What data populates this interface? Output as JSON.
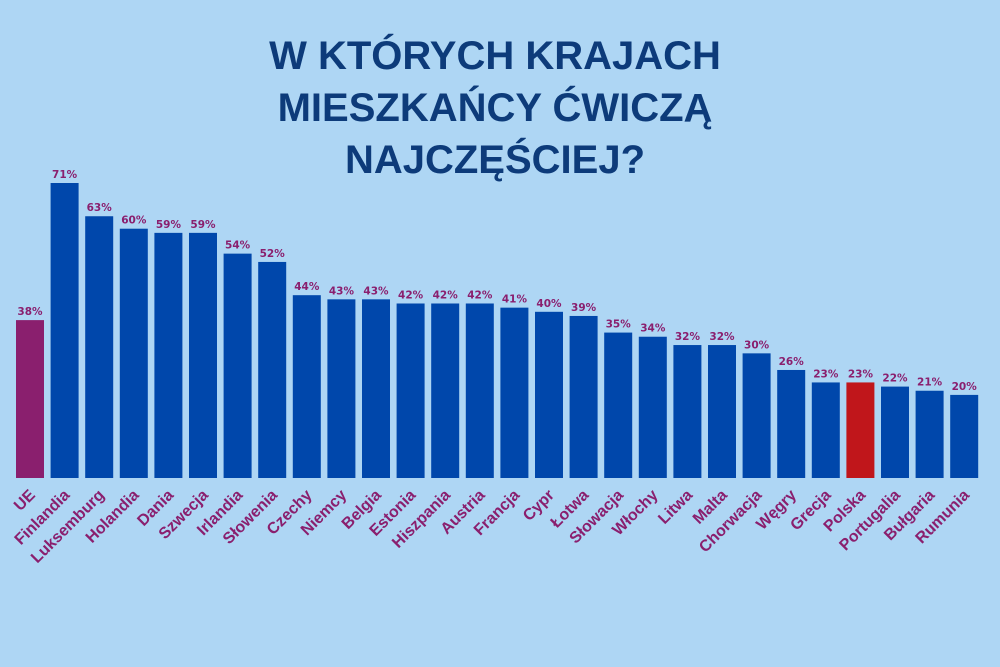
{
  "title_lines": [
    "W KTÓRYCH KRAJACH",
    "MIESZKAŃCY ĆWICZĄ",
    "NAJCZĘŚCIEJ?"
  ],
  "colors": {
    "background": "#aed6f4",
    "title": "#0d3b7a",
    "bar_default": "#0047ab",
    "bar_eu": "#8a1f6e",
    "bar_highlight": "#c0161b",
    "labels": "#8a1f6e"
  },
  "chart_data": {
    "type": "bar",
    "title": "W KTÓRYCH KRAJACH MIESZKAŃCY ĆWICZĄ NAJCZĘŚCIEJ?",
    "value_suffix": "%",
    "categories": [
      "UE",
      "Finlandia",
      "Luksemburg",
      "Holandia",
      "Dania",
      "Szwecja",
      "Irlandia",
      "Słowenia",
      "Czechy",
      "Niemcy",
      "Belgia",
      "Estonia",
      "Hiszpania",
      "Austria",
      "Francja",
      "Cypr",
      "Łotwa",
      "Słowacja",
      "Włochy",
      "Litwa",
      "Malta",
      "Chorwacja",
      "Węgry",
      "Grecja",
      "Polska",
      "Portugalia",
      "Bułgaria",
      "Rumunia"
    ],
    "values": [
      38,
      71,
      63,
      60,
      59,
      59,
      54,
      52,
      44,
      43,
      43,
      42,
      42,
      42,
      41,
      40,
      39,
      35,
      34,
      32,
      32,
      30,
      26,
      23,
      23,
      22,
      21,
      20
    ],
    "highlight": {
      "UE": "eu",
      "Polska": "highlight"
    },
    "ylim": [
      0,
      71
    ],
    "grid": false,
    "legend": "none"
  }
}
